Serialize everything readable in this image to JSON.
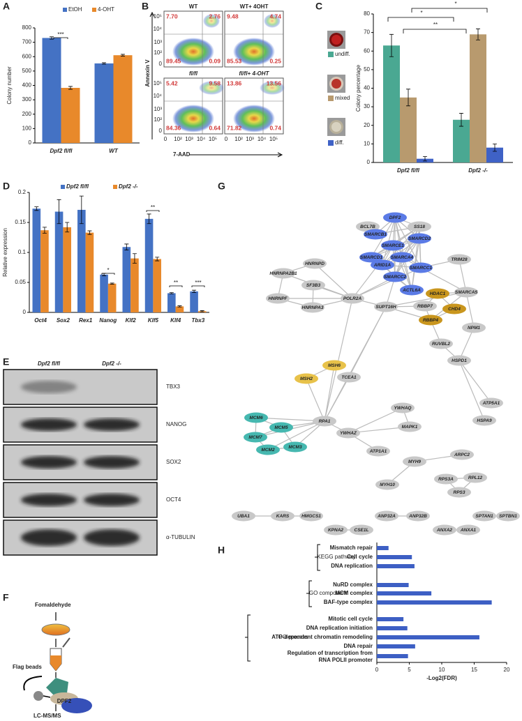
{
  "panel_labels": [
    "A",
    "B",
    "C",
    "D",
    "E",
    "F",
    "G",
    "H"
  ],
  "chart_data": [
    {
      "type": "bar",
      "y_label": "Colony number",
      "categories": [
        "Dpf2 fl/fl",
        "WT"
      ],
      "series": [
        {
          "name": "EtOH",
          "color": "#4472c4",
          "values": [
            730,
            553
          ],
          "errors": [
            8,
            5
          ]
        },
        {
          "name": "4-OHT",
          "color": "#e8892b",
          "values": [
            383,
            610
          ],
          "errors": [
            10,
            6
          ]
        }
      ],
      "ylim": [
        0,
        800
      ],
      "yticks": [
        0,
        100,
        200,
        300,
        400,
        500,
        600,
        700,
        800
      ],
      "annotations": [
        "***"
      ]
    },
    {
      "type": "bar",
      "y_label": "Colony percentage",
      "categories": [
        "Dpf2 fl/fl",
        "Dpf2 -/-"
      ],
      "series": [
        {
          "name": "undiff.",
          "color": "#4aa892",
          "values": [
            63,
            23
          ],
          "errors": [
            6,
            3.5
          ]
        },
        {
          "name": "mixed",
          "color": "#b89a6e",
          "values": [
            35,
            69
          ],
          "errors": [
            4.5,
            3
          ]
        },
        {
          "name": "diff.",
          "color": "#3f62c6",
          "values": [
            2,
            8
          ],
          "errors": [
            1.2,
            2
          ]
        }
      ],
      "ylim": [
        0,
        80
      ],
      "yticks": [
        0,
        10,
        20,
        30,
        40,
        50,
        60,
        70,
        80
      ],
      "annotations": [
        "*",
        "*",
        "**"
      ]
    },
    {
      "type": "bar",
      "y_label": "Relative expression",
      "categories": [
        "Oct4",
        "Sox2",
        "Rex1",
        "Nanog",
        "Klf2",
        "Klf5",
        "Klf4",
        "Tbx3"
      ],
      "series": [
        {
          "name": "Dpf2 fl/fl",
          "color": "#4472c4",
          "values": [
            0.173,
            0.168,
            0.171,
            0.063,
            0.109,
            0.156,
            0.032,
            0.035
          ],
          "errors": [
            0.003,
            0.02,
            0.023,
            0.002,
            0.005,
            0.008,
            0.001,
            0.002
          ]
        },
        {
          "name": "Dpf2 -/-",
          "color": "#e8892b",
          "values": [
            0.137,
            0.142,
            0.133,
            0.048,
            0.09,
            0.089,
            0.01,
            0.002
          ],
          "errors": [
            0.005,
            0.008,
            0.003,
            0.001,
            0.008,
            0.003,
            0.001,
            0.001
          ]
        }
      ],
      "ylim": [
        0,
        0.2
      ],
      "yticks": [
        0,
        0.05,
        0.1,
        0.15,
        0.2
      ],
      "annotations": [
        "*",
        "**",
        "**",
        "***"
      ]
    },
    {
      "type": "barh",
      "x_label": "-Log2(FDR)",
      "groups": [
        "KEGG pathway",
        "GO component",
        "GO process"
      ],
      "categories": [
        "Mismatch repair",
        "Cell cycle",
        "DNA replication",
        "NuRD complex",
        "MCM complex",
        "BAF-type complex",
        "Mitotic cell cycle",
        "DNA replication initiation",
        "ATP-dependent chromatin remodeling",
        "DNA repair",
        "Regulation of transcription from\nRNA POLII promoter"
      ],
      "values": [
        1.8,
        5.4,
        5.8,
        4.9,
        8.4,
        17.7,
        4.1,
        4.7,
        15.8,
        5.9,
        4.8
      ],
      "color": "#3d5fc4",
      "xlim": [
        0,
        20
      ],
      "xticks": [
        0,
        5,
        10,
        15,
        20
      ]
    }
  ],
  "flow_cytometry": {
    "y_label": "Annexin V",
    "x_label": "7-AAD",
    "axis_ticks": [
      "0",
      "10²",
      "10³",
      "10⁴",
      "10⁵"
    ],
    "plots": [
      {
        "title": "WT",
        "quadrants": [
          "7.70",
          "2.76",
          "89.45",
          "0.09"
        ]
      },
      {
        "title": "WT+ 4OHT",
        "quadrants": [
          "9.48",
          "4.74",
          "85.53",
          "0.25"
        ]
      },
      {
        "title": "fl/fl",
        "quadrants": [
          "5.42",
          "9.58",
          "84.36",
          "0.64"
        ]
      },
      {
        "title": "fl/fl+ 4-OHT",
        "quadrants": [
          "13.86",
          "13.56",
          "71.82",
          "0.74"
        ]
      }
    ]
  },
  "western_blot": {
    "columns": [
      "Dpf2 fl/fl",
      "Dpf2 -/-"
    ],
    "rows": [
      "TBX3",
      "NANOG",
      "SOX2",
      "OCT4",
      "α-TUBULIN"
    ]
  },
  "schematic": {
    "steps": [
      "Fomaldehyde",
      "Flag beads",
      "DPF2",
      "LC-MS/MS"
    ]
  },
  "network": {
    "nodes": [
      {
        "label": "BCL7B",
        "color": "#c8c8c8"
      },
      {
        "label": "DPF2",
        "color": "#5b7be6"
      },
      {
        "label": "SS18",
        "color": "#c8c8c8"
      },
      {
        "label": "SMARCB1",
        "color": "#5b7be6"
      },
      {
        "label": "SMARCD2",
        "color": "#5b7be6"
      },
      {
        "label": "SMARCE1",
        "color": "#5b7be6"
      },
      {
        "label": "SMARCD1",
        "color": "#5b7be6"
      },
      {
        "label": "SMARCA4",
        "color": "#5b7be6"
      },
      {
        "label": "ARID1A",
        "color": "#5b7be6"
      },
      {
        "label": "SMARCC1",
        "color": "#5b7be6"
      },
      {
        "label": "TRIM28",
        "color": "#c8c8c8"
      },
      {
        "label": "SMARCC2",
        "color": "#5b7be6"
      },
      {
        "label": "HNRNPD",
        "color": "#c8c8c8"
      },
      {
        "label": "HNRNPA2B1",
        "color": "#c8c8c8"
      },
      {
        "label": "SF3B3",
        "color": "#c8c8c8"
      },
      {
        "label": "HNRNPF",
        "color": "#c8c8c8"
      },
      {
        "label": "HNRNPA3",
        "color": "#c8c8c8"
      },
      {
        "label": "POLR2A",
        "color": "#c8c8c8"
      },
      {
        "label": "ACTL6A",
        "color": "#5b7be6"
      },
      {
        "label": "HDAC1",
        "color": "#c9961e"
      },
      {
        "label": "SMARCA5",
        "color": "#c8c8c8"
      },
      {
        "label": "SUPT16H",
        "color": "#c8c8c8"
      },
      {
        "label": "RBBP7",
        "color": "#c8c8c8"
      },
      {
        "label": "CHD4",
        "color": "#c9961e"
      },
      {
        "label": "RBBP4",
        "color": "#c9961e"
      },
      {
        "label": "NPM1",
        "color": "#c8c8c8"
      },
      {
        "label": "RUVBL2",
        "color": "#c8c8c8"
      },
      {
        "label": "HSPD1",
        "color": "#c8c8c8"
      },
      {
        "label": "MSH6",
        "color": "#e8c24a"
      },
      {
        "label": "TCEA1",
        "color": "#c8c8c8"
      },
      {
        "label": "MSH2",
        "color": "#e8c24a"
      },
      {
        "label": "YWHAQ",
        "color": "#c8c8c8"
      },
      {
        "label": "MAPK1",
        "color": "#c8c8c8"
      },
      {
        "label": "ATP5A1",
        "color": "#c8c8c8"
      },
      {
        "label": "HSPA9",
        "color": "#c8c8c8"
      },
      {
        "label": "RPA1",
        "color": "#c8c8c8"
      },
      {
        "label": "YWHAZ",
        "color": "#c8c8c8"
      },
      {
        "label": "MCM6",
        "color": "#46b8b0"
      },
      {
        "label": "MCM5",
        "color": "#46b8b0"
      },
      {
        "label": "MCM7",
        "color": "#46b8b0"
      },
      {
        "label": "ATP1A1",
        "color": "#c8c8c8"
      },
      {
        "label": "MCM2",
        "color": "#46b8b0"
      },
      {
        "label": "MCM3",
        "color": "#46b8b0"
      },
      {
        "label": "MYH9",
        "color": "#c8c8c8"
      },
      {
        "label": "ARPC2",
        "color": "#c8c8c8"
      },
      {
        "label": "RPS3A",
        "color": "#c8c8c8"
      },
      {
        "label": "RPL12",
        "color": "#c8c8c8"
      },
      {
        "label": "RPS3",
        "color": "#c8c8c8"
      },
      {
        "label": "MYH10",
        "color": "#c8c8c8"
      },
      {
        "label": "UBA1",
        "color": "#c8c8c8"
      },
      {
        "label": "KARS",
        "color": "#c8c8c8"
      },
      {
        "label": "HMGCS1",
        "color": "#c8c8c8"
      },
      {
        "label": "KPNA2",
        "color": "#c8c8c8"
      },
      {
        "label": "CSE1L",
        "color": "#c8c8c8"
      },
      {
        "label": "ANP32A",
        "color": "#c8c8c8"
      },
      {
        "label": "ANP32B",
        "color": "#c8c8c8"
      },
      {
        "label": "ANXA2",
        "color": "#c8c8c8"
      },
      {
        "label": "ANXA1",
        "color": "#c8c8c8"
      },
      {
        "label": "SPTAN1",
        "color": "#c8c8c8"
      },
      {
        "label": "SPTBN1",
        "color": "#c8c8c8"
      }
    ]
  }
}
